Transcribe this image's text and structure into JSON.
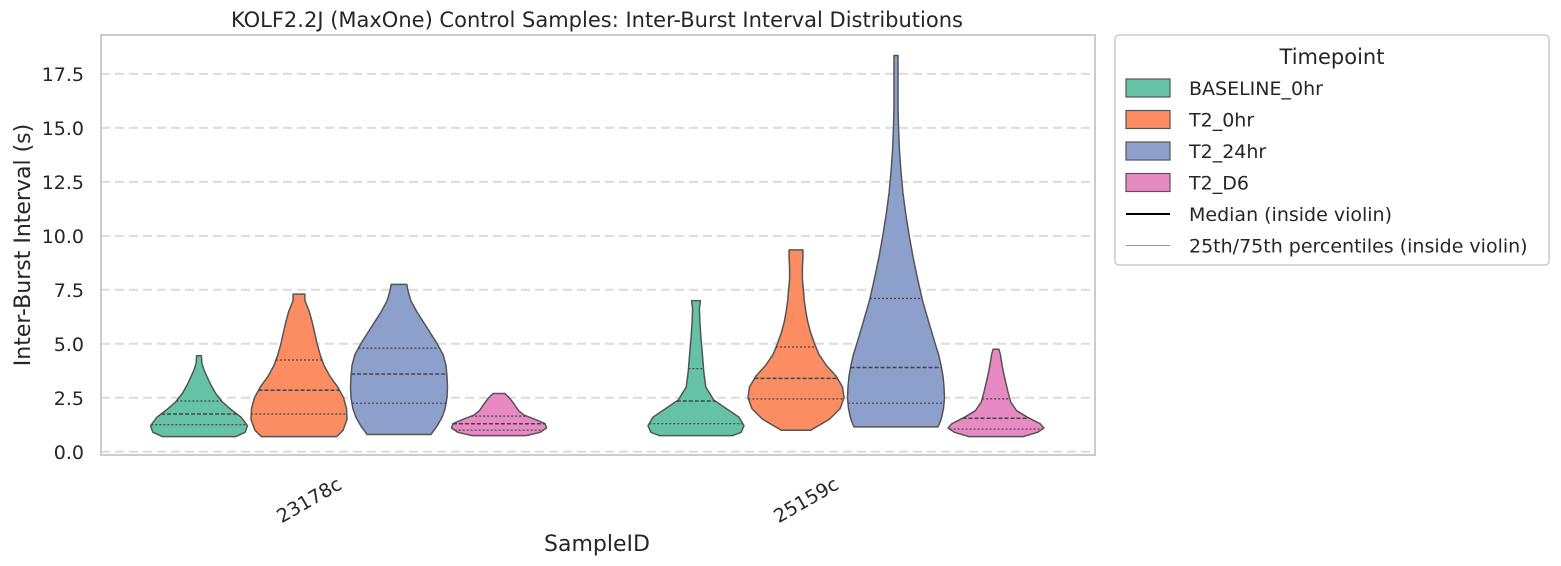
{
  "chart_data": {
    "type": "violin",
    "title": "KOLF2.2J (MaxOne) Control Samples: Inter-Burst Interval Distributions",
    "xlabel": "SampleID",
    "ylabel": "Inter-Burst Interval (s)",
    "categories": [
      "23178c",
      "25159c"
    ],
    "ylim": [
      -0.15,
      19.3
    ],
    "yticks": [
      "0.0",
      "2.5",
      "5.0",
      "7.5",
      "10.0",
      "12.5",
      "15.0",
      "17.5"
    ],
    "ytick_values": [
      0,
      2.5,
      5,
      7.5,
      10,
      12.5,
      15,
      17.5
    ],
    "grid": "horizontal dashed",
    "legend": {
      "title": "Timepoint",
      "position": "outside right",
      "entries": [
        {
          "label": "BASELINE_0hr",
          "kind": "patch",
          "color": "#66c2a5"
        },
        {
          "label": "T2_0hr",
          "kind": "patch",
          "color": "#fc8d62"
        },
        {
          "label": "T2_24hr",
          "kind": "patch",
          "color": "#8da0cb"
        },
        {
          "label": "T2_D6",
          "kind": "patch",
          "color": "#e78ac3"
        },
        {
          "label": "Median (inside violin)",
          "kind": "line",
          "color": "#000000"
        },
        {
          "label": "25th/75th percentiles (inside violin)",
          "kind": "thinline",
          "color": "#999999"
        }
      ]
    },
    "series": [
      {
        "name": "BASELINE_0hr",
        "color": "#66c2a5",
        "violins": [
          {
            "category": "23178c",
            "min": 0.7,
            "q1": 1.25,
            "median": 1.75,
            "q3": 2.35,
            "max": 4.45,
            "profile": [
              [
                0.7,
                0.75
              ],
              [
                0.9,
                0.94
              ],
              [
                1.2,
                0.99
              ],
              [
                1.6,
                0.86
              ],
              [
                2.0,
                0.63
              ],
              [
                2.3,
                0.48
              ],
              [
                2.7,
                0.34
              ],
              [
                3.1,
                0.24
              ],
              [
                3.5,
                0.16
              ],
              [
                3.8,
                0.1
              ],
              [
                4.1,
                0.06
              ],
              [
                4.45,
                0.05
              ]
            ]
          },
          {
            "category": "25159c",
            "min": 0.75,
            "q1": 1.3,
            "median": 2.35,
            "q3": 3.85,
            "max": 7.0,
            "profile": [
              [
                0.75,
                0.75
              ],
              [
                0.9,
                0.92
              ],
              [
                1.2,
                0.98
              ],
              [
                1.6,
                0.88
              ],
              [
                2.0,
                0.62
              ],
              [
                2.4,
                0.36
              ],
              [
                3.0,
                0.2
              ],
              [
                3.7,
                0.16
              ],
              [
                4.5,
                0.13
              ],
              [
                5.3,
                0.1
              ],
              [
                6.0,
                0.08
              ],
              [
                6.6,
                0.07
              ],
              [
                7.0,
                0.09
              ]
            ]
          }
        ]
      },
      {
        "name": "T2_0hr",
        "color": "#fc8d62",
        "violins": [
          {
            "category": "23178c",
            "min": 0.7,
            "q1": 1.75,
            "median": 2.85,
            "q3": 4.25,
            "max": 7.3,
            "profile": [
              [
                0.7,
                0.77
              ],
              [
                1.0,
                0.9
              ],
              [
                1.5,
                0.98
              ],
              [
                2.0,
                0.97
              ],
              [
                2.5,
                0.91
              ],
              [
                3.0,
                0.79
              ],
              [
                3.5,
                0.63
              ],
              [
                4.0,
                0.51
              ],
              [
                4.5,
                0.43
              ],
              [
                5.0,
                0.37
              ],
              [
                5.5,
                0.32
              ],
              [
                6.0,
                0.27
              ],
              [
                6.5,
                0.21
              ],
              [
                7.0,
                0.12
              ],
              [
                7.3,
                0.12
              ]
            ]
          },
          {
            "category": "25159c",
            "min": 1.0,
            "q1": 2.45,
            "median": 3.4,
            "q3": 4.85,
            "max": 9.35,
            "profile": [
              [
                1.0,
                0.3
              ],
              [
                1.5,
                0.68
              ],
              [
                2.0,
                0.9
              ],
              [
                2.5,
                0.98
              ],
              [
                3.0,
                0.95
              ],
              [
                3.5,
                0.82
              ],
              [
                4.0,
                0.62
              ],
              [
                4.5,
                0.47
              ],
              [
                5.0,
                0.38
              ],
              [
                5.5,
                0.3
              ],
              [
                6.0,
                0.24
              ],
              [
                6.5,
                0.2
              ],
              [
                7.0,
                0.17
              ],
              [
                7.5,
                0.15
              ],
              [
                8.0,
                0.13
              ],
              [
                8.5,
                0.13
              ],
              [
                9.0,
                0.14
              ],
              [
                9.35,
                0.14
              ]
            ]
          }
        ]
      },
      {
        "name": "T2_24hr",
        "color": "#8da0cb",
        "violins": [
          {
            "category": "23178c",
            "min": 0.8,
            "q1": 2.25,
            "median": 3.6,
            "q3": 4.8,
            "max": 7.75,
            "profile": [
              [
                0.8,
                0.65
              ],
              [
                1.2,
                0.78
              ],
              [
                1.6,
                0.88
              ],
              [
                2.0,
                0.94
              ],
              [
                2.5,
                0.98
              ],
              [
                3.0,
                0.99
              ],
              [
                3.5,
                0.98
              ],
              [
                4.0,
                0.96
              ],
              [
                4.5,
                0.9
              ],
              [
                5.0,
                0.78
              ],
              [
                5.5,
                0.64
              ],
              [
                6.0,
                0.5
              ],
              [
                6.5,
                0.36
              ],
              [
                7.0,
                0.24
              ],
              [
                7.5,
                0.18
              ],
              [
                7.75,
                0.16
              ]
            ]
          },
          {
            "category": "25159c",
            "min": 1.15,
            "q1": 2.25,
            "median": 3.9,
            "q3": 7.1,
            "max": 18.35,
            "profile": [
              [
                1.15,
                0.86
              ],
              [
                1.5,
                0.92
              ],
              [
                2.0,
                0.97
              ],
              [
                2.5,
                0.99
              ],
              [
                3.0,
                0.98
              ],
              [
                3.5,
                0.96
              ],
              [
                4.0,
                0.92
              ],
              [
                4.5,
                0.87
              ],
              [
                5.0,
                0.8
              ],
              [
                6.0,
                0.67
              ],
              [
                7.0,
                0.54
              ],
              [
                8.0,
                0.44
              ],
              [
                9.0,
                0.35
              ],
              [
                10.0,
                0.27
              ],
              [
                11.0,
                0.2
              ],
              [
                12.0,
                0.14
              ],
              [
                13.0,
                0.1
              ],
              [
                14.0,
                0.07
              ],
              [
                15.0,
                0.05
              ],
              [
                16.0,
                0.04
              ],
              [
                17.0,
                0.04
              ],
              [
                18.35,
                0.04
              ]
            ]
          }
        ]
      },
      {
        "name": "T2_D6",
        "color": "#e78ac3",
        "violins": [
          {
            "category": "23178c",
            "min": 0.75,
            "q1": 1.0,
            "median": 1.3,
            "q3": 1.65,
            "max": 2.7,
            "profile": [
              [
                0.75,
                0.55
              ],
              [
                0.9,
                0.84
              ],
              [
                1.1,
                0.97
              ],
              [
                1.3,
                0.94
              ],
              [
                1.5,
                0.74
              ],
              [
                1.7,
                0.51
              ],
              [
                1.9,
                0.4
              ],
              [
                2.1,
                0.34
              ],
              [
                2.3,
                0.28
              ],
              [
                2.5,
                0.21
              ],
              [
                2.7,
                0.12
              ]
            ]
          },
          {
            "category": "25159c",
            "min": 0.7,
            "q1": 1.05,
            "median": 1.55,
            "q3": 2.45,
            "max": 4.75,
            "profile": [
              [
                0.7,
                0.55
              ],
              [
                0.9,
                0.85
              ],
              [
                1.1,
                0.98
              ],
              [
                1.3,
                0.9
              ],
              [
                1.6,
                0.64
              ],
              [
                1.9,
                0.42
              ],
              [
                2.3,
                0.3
              ],
              [
                2.8,
                0.24
              ],
              [
                3.3,
                0.19
              ],
              [
                3.8,
                0.14
              ],
              [
                4.2,
                0.11
              ],
              [
                4.5,
                0.09
              ],
              [
                4.75,
                0.06
              ]
            ]
          }
        ]
      }
    ]
  }
}
